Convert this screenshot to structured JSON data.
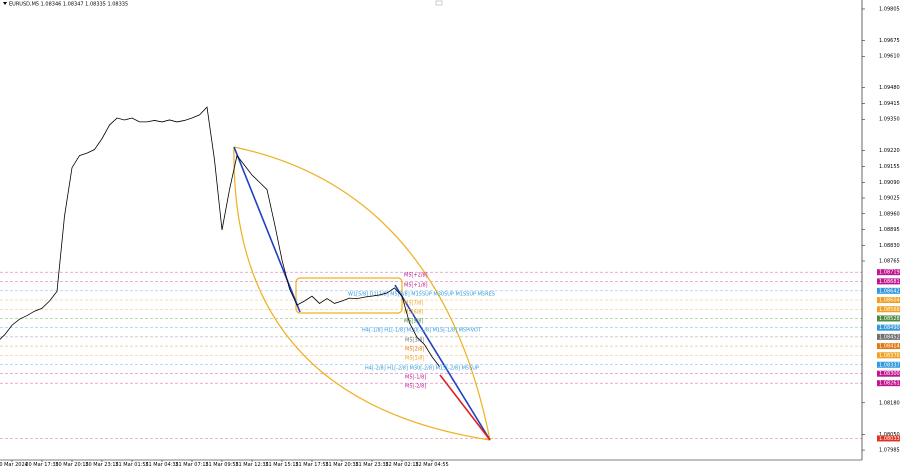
{
  "chart_data": {
    "type": "line",
    "title": "EURUSD,M5  1.08346 1.08347 1.08335 1.08335",
    "categories": [
      null,
      null,
      "20 Mar 2024",
      null,
      null,
      null,
      "20 Mar 17:35",
      null,
      null,
      null,
      "20 Mar 20:15",
      null,
      null,
      null,
      "20 Mar 23:15",
      null,
      null,
      null,
      "21 Mar 01:55",
      null,
      null,
      null,
      "21 Mar 04:35",
      null,
      null,
      null,
      "21 Mar 07:15",
      null,
      null,
      null,
      "21 Mar 09:55",
      null,
      null,
      null,
      "21 Mar 12:35",
      null,
      null,
      null,
      "21 Mar 15:15",
      null,
      null,
      null,
      "21 Mar 17:55",
      null,
      null,
      null,
      "21 Mar 20:35",
      null,
      null,
      null,
      "21 Mar 23:35",
      null,
      null,
      null,
      "22 Mar 02:15",
      null,
      null,
      null,
      "22 Mar 04:55",
      null
    ],
    "values": [
      1.0843,
      1.0846,
      1.085,
      1.08525,
      1.0854,
      1.08558,
      1.0857,
      1.086,
      1.0864,
      1.0895,
      1.0915,
      1.092,
      1.0921,
      1.09225,
      1.0927,
      1.09326,
      1.09355,
      1.09347,
      1.09355,
      1.09339,
      1.09339,
      1.09345,
      1.09339,
      1.09347,
      1.09339,
      1.09345,
      1.09355,
      1.09368,
      1.094,
      1.09182,
      1.08893,
      1.0906,
      1.092,
      1.0916,
      1.0912,
      1.0909,
      1.0906,
      1.0892,
      1.08769,
      1.0865,
      1.08583,
      1.086,
      1.0862,
      1.0859,
      1.0861,
      1.0859,
      1.086,
      1.08612,
      1.0861,
      1.08616,
      1.0862,
      1.08625,
      1.08633,
      1.08654,
      1.0862,
      1.0851,
      1.0845,
      1.0842,
      1.0837,
      1.0833
    ],
    "color": "#000000",
    "ylim": [
      1.07944,
      1.09842
    ],
    "yticks": [
      1.09805,
      1.09675,
      {
        "value": 1.0961,
        "label": "1.09610"
      },
      {
        "value": 1.0948,
        "label": "1.09480"
      },
      1.09415,
      {
        "value": 1.0935,
        "label": "1.09350"
      },
      {
        "value": 1.0922,
        "label": "1.09220"
      },
      1.09155,
      {
        "value": 1.0909,
        "label": "1.09090"
      },
      1.09025,
      {
        "value": 1.0896,
        "label": "1.08960"
      },
      1.08895,
      {
        "value": 1.0883,
        "label": "1.08830"
      },
      1.08765,
      {
        "value": 1.0818,
        "label": "1.08180"
      },
      {
        "value": 1.0805,
        "label": "1.08050"
      },
      1.07985
    ],
    "levels": [
      {
        "value": 1.08719,
        "color": "#c0158f"
      },
      {
        "value": 1.08681,
        "color": "#c0158f"
      },
      {
        "value": 1.08642,
        "color": "#3399dd"
      },
      {
        "value": 1.08604,
        "color": "#f0a020"
      },
      {
        "value": 1.08566,
        "color": "#f0a020"
      },
      {
        "value": 1.08528,
        "color": "#4a8a3a"
      },
      {
        "value": 1.0849,
        "label": "1.08490",
        "color": "#3399dd"
      },
      {
        "value": 1.08452,
        "color": "#707070"
      },
      {
        "value": 1.08414,
        "color": "#e07a10"
      },
      {
        "value": 1.08376,
        "color": "#f0a020"
      },
      {
        "value": 1.08337,
        "color": "#3399dd"
      },
      {
        "value": 1.083,
        "label": "1.08300",
        "color": "#c0158f"
      },
      {
        "value": 1.08261,
        "color": "#c0158f"
      },
      {
        "value": 1.08033,
        "color": "#e03020"
      }
    ],
    "annotations": [
      "M5[+2/8]",
      "M5[+1/8]",
      "W1[5/8] D1[2/8] M5[8/8] M15SUP M30SUP M1SSUP M5RES",
      "M5[7/8]",
      "M5[6/8]",
      "M5[5/8]",
      "H4[-1/8] H1[-1/8] M30[-1/8] M15[-1/8] M5PIVOT",
      "M5[3/8]",
      "M5[2/8]",
      "M5[1/8]",
      "H4[-2/8] H1[-2/8] M30[-2/8] M15[-2/8] M5SUP",
      "M5[-1/8]",
      "M5[-2/8]"
    ],
    "grid": false
  }
}
